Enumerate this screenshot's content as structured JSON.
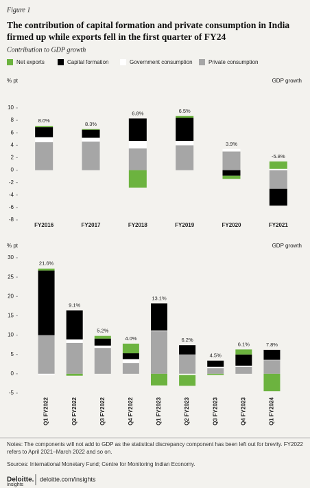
{
  "figure_label": "Figure 1",
  "title": "The contribution of capital formation and private consumption in India firmed up while exports fell in the first quarter of FY24",
  "subtitle": "Contribution to GDP growth",
  "chart_data": [
    {
      "type": "bar",
      "stacked": true,
      "y_label": "% pt",
      "categories": [
        "FY2016",
        "FY2017",
        "FY2018",
        "FY2019",
        "FY2020",
        "FY2021"
      ],
      "series": [
        {
          "name": "Net exports",
          "color": "#6cb33f",
          "values": [
            0.2,
            0.1,
            -2.8,
            0.3,
            -0.5,
            1.2
          ]
        },
        {
          "name": "Capital formation",
          "color": "#000000",
          "values": [
            1.6,
            1.3,
            3.6,
            3.7,
            -0.9,
            -2.7
          ]
        },
        {
          "name": "Government consumption",
          "color": "#ffffff",
          "values": [
            0.8,
            0.6,
            1.2,
            0.7,
            0.4,
            0.2
          ]
        },
        {
          "name": "Private consumption",
          "color": "#a6a6a6",
          "values": [
            4.5,
            4.6,
            3.5,
            4.0,
            3.0,
            -3.0
          ]
        }
      ],
      "growth": {
        "name": "GDP growth",
        "values": [
          8.0,
          8.3,
          6.8,
          6.5,
          3.9,
          -5.8
        ],
        "value_labels": [
          "8.0%",
          "8.3%",
          "6.8%",
          "6.5%",
          "3.9%",
          "-5.8%"
        ]
      },
      "ylim": [
        -8,
        10
      ],
      "yticks": [
        -8,
        -6,
        -4,
        -2,
        0,
        2,
        4,
        6,
        8,
        10
      ]
    },
    {
      "type": "bar",
      "stacked": true,
      "y_label": "% pt",
      "categories": [
        "Q1 FY2022",
        "Q2 FY2022",
        "Q3 FY2022",
        "Q4 FY2022",
        "Q1 FY2023",
        "Q2 FY2023",
        "Q3 FY2023",
        "Q4 FY2023",
        "Q1 FY2024"
      ],
      "series": [
        {
          "color": "#6cb33f",
          "values": [
            0.5,
            -0.5,
            0.7,
            2.5,
            -3.0,
            -2.8,
            -0.3,
            1.3,
            -4.5
          ]
        },
        {
          "color": "#000000",
          "values": [
            16.7,
            7.5,
            1.8,
            1.5,
            7.0,
            2.4,
            1.6,
            2.9,
            2.6
          ]
        },
        {
          "color": "#ffffff",
          "values": [
            -0.3,
            0.9,
            0.6,
            1.0,
            0.2,
            -0.3,
            0.3,
            0.3,
            0.1
          ]
        },
        {
          "color": "#a6a6a6",
          "values": [
            10.0,
            8.0,
            6.7,
            2.8,
            11.0,
            5.0,
            1.5,
            1.8,
            3.5
          ]
        }
      ],
      "growth": {
        "name": "GDP growth",
        "values": [
          21.6,
          9.1,
          5.2,
          4.0,
          13.1,
          6.2,
          4.5,
          6.1,
          7.8
        ],
        "value_labels": [
          "21.6%",
          "9.1%",
          "5.2%",
          "4.0%",
          "13.1%",
          "6.2%",
          "4.5%",
          "6.1%",
          "7.8%"
        ]
      },
      "ylim": [
        -5,
        30
      ],
      "yticks": [
        -5,
        0,
        5,
        10,
        15,
        20,
        25,
        30
      ],
      "rotate_labels": true
    }
  ],
  "notes": "Notes: The components will not add to GDP as the statistical discrepancy component has been left out for brevity. FY2022 refers to April 2021–March 2022 and so on.",
  "sources": "Sources: International Monetary Fund; Centre for Monitoring Indian Economy.",
  "brand": "Deloitte.",
  "brand_sub": "Insights",
  "url": "deloitte.com/insights"
}
